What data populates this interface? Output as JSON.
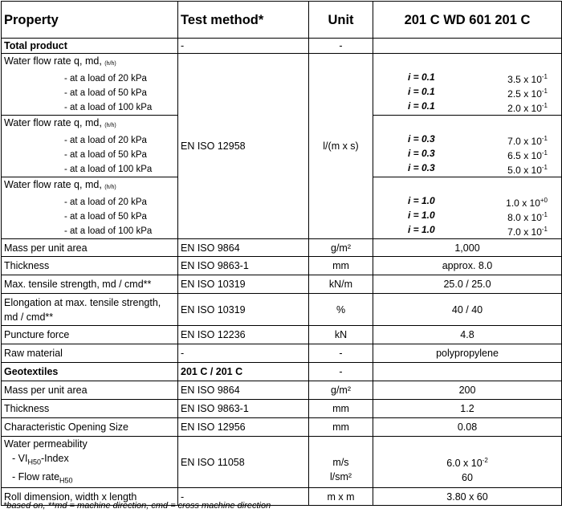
{
  "header": {
    "property": "Property",
    "method": "Test method*",
    "unit": "Unit",
    "product": "201 C WD 601 201 C"
  },
  "total": {
    "label": "Total product",
    "method": "-",
    "unit": "-"
  },
  "flow_label": "Water flow rate q, md,",
  "flow_sub": "(h/h)",
  "flow_loads": [
    "- at a load of   20 kPa",
    "- at a load of   50 kPa",
    "- at a load of 100 kPa"
  ],
  "flow_method": "EN ISO 12958",
  "flow_unit": "l/(m x s)",
  "flow_groups": [
    {
      "i": [
        "i = 0.1",
        "i = 0.1",
        "i = 0.1"
      ],
      "mant": [
        "3.5 x 10",
        "2.5 x 10",
        "2.0 x 10"
      ],
      "exp": [
        "-1",
        "-1",
        "-1"
      ]
    },
    {
      "i": [
        "i = 0.3",
        "i = 0.3",
        "i = 0.3"
      ],
      "mant": [
        "7.0 x 10",
        "6.5 x 10",
        "5.0 x 10"
      ],
      "exp": [
        "-1",
        "-1",
        "-1"
      ]
    },
    {
      "i": [
        "i = 1.0",
        "i = 1.0",
        "i = 1.0"
      ],
      "mant": [
        "1.0 x 10",
        "8.0 x 10",
        "7.0 x 10"
      ],
      "exp": [
        "+0",
        "-1",
        "-1"
      ]
    }
  ],
  "rows": [
    {
      "p": "Mass per unit area",
      "m": "EN ISO 9864",
      "u": "g/m²",
      "v": "1,000"
    },
    {
      "p": "Thickness",
      "m": "EN ISO 9863-1",
      "u": "mm",
      "v": "approx. 8.0"
    },
    {
      "p": "Max. tensile strength, md / cmd**",
      "m": "EN ISO 10319",
      "u": "kN/m",
      "v": "25.0 / 25.0"
    },
    {
      "p": "Elongation at max. tensile strength, md / cmd**",
      "m": "EN ISO 10319",
      "u": "%",
      "v": "40 / 40"
    },
    {
      "p": "Puncture force",
      "m": "EN ISO 12236",
      "u": "kN",
      "v": "4.8"
    },
    {
      "p": "Raw material",
      "m": "-",
      "u": "-",
      "v": "polypropylene"
    }
  ],
  "geo": {
    "label": "Geotextiles",
    "method": "201 C  / 201 C",
    "unit": "-"
  },
  "geo_rows": [
    {
      "p": "Mass per unit area",
      "m": "EN ISO 9864",
      "u": "g/m²",
      "v": "200"
    },
    {
      "p": "Thickness",
      "m": "EN ISO 9863-1",
      "u": "mm",
      "v": "1.2"
    },
    {
      "p": "Characteristic Opening Size",
      "m": "EN ISO 12956",
      "u": "mm",
      "v": "0.08"
    }
  ],
  "perm": {
    "label": "Water permeability",
    "vi_label": "- VI",
    "vi_sub": "H50",
    "vi_suffix": "-Index",
    "fr_label": "- Flow rate",
    "fr_sub": "H50",
    "method": "EN ISO 11058",
    "vi_unit": "m/s",
    "fr_unit": "l/sm²",
    "vi_mant": "6.0 x 10",
    "vi_exp": "-2",
    "fr_value": "60"
  },
  "roll": {
    "p": "Roll dimension, width  x length",
    "m": "-",
    "u": "m x m",
    "v": "3.80 x 60"
  },
  "footnote": "*based on, **md = machine direction, cmd = cross machine direction"
}
